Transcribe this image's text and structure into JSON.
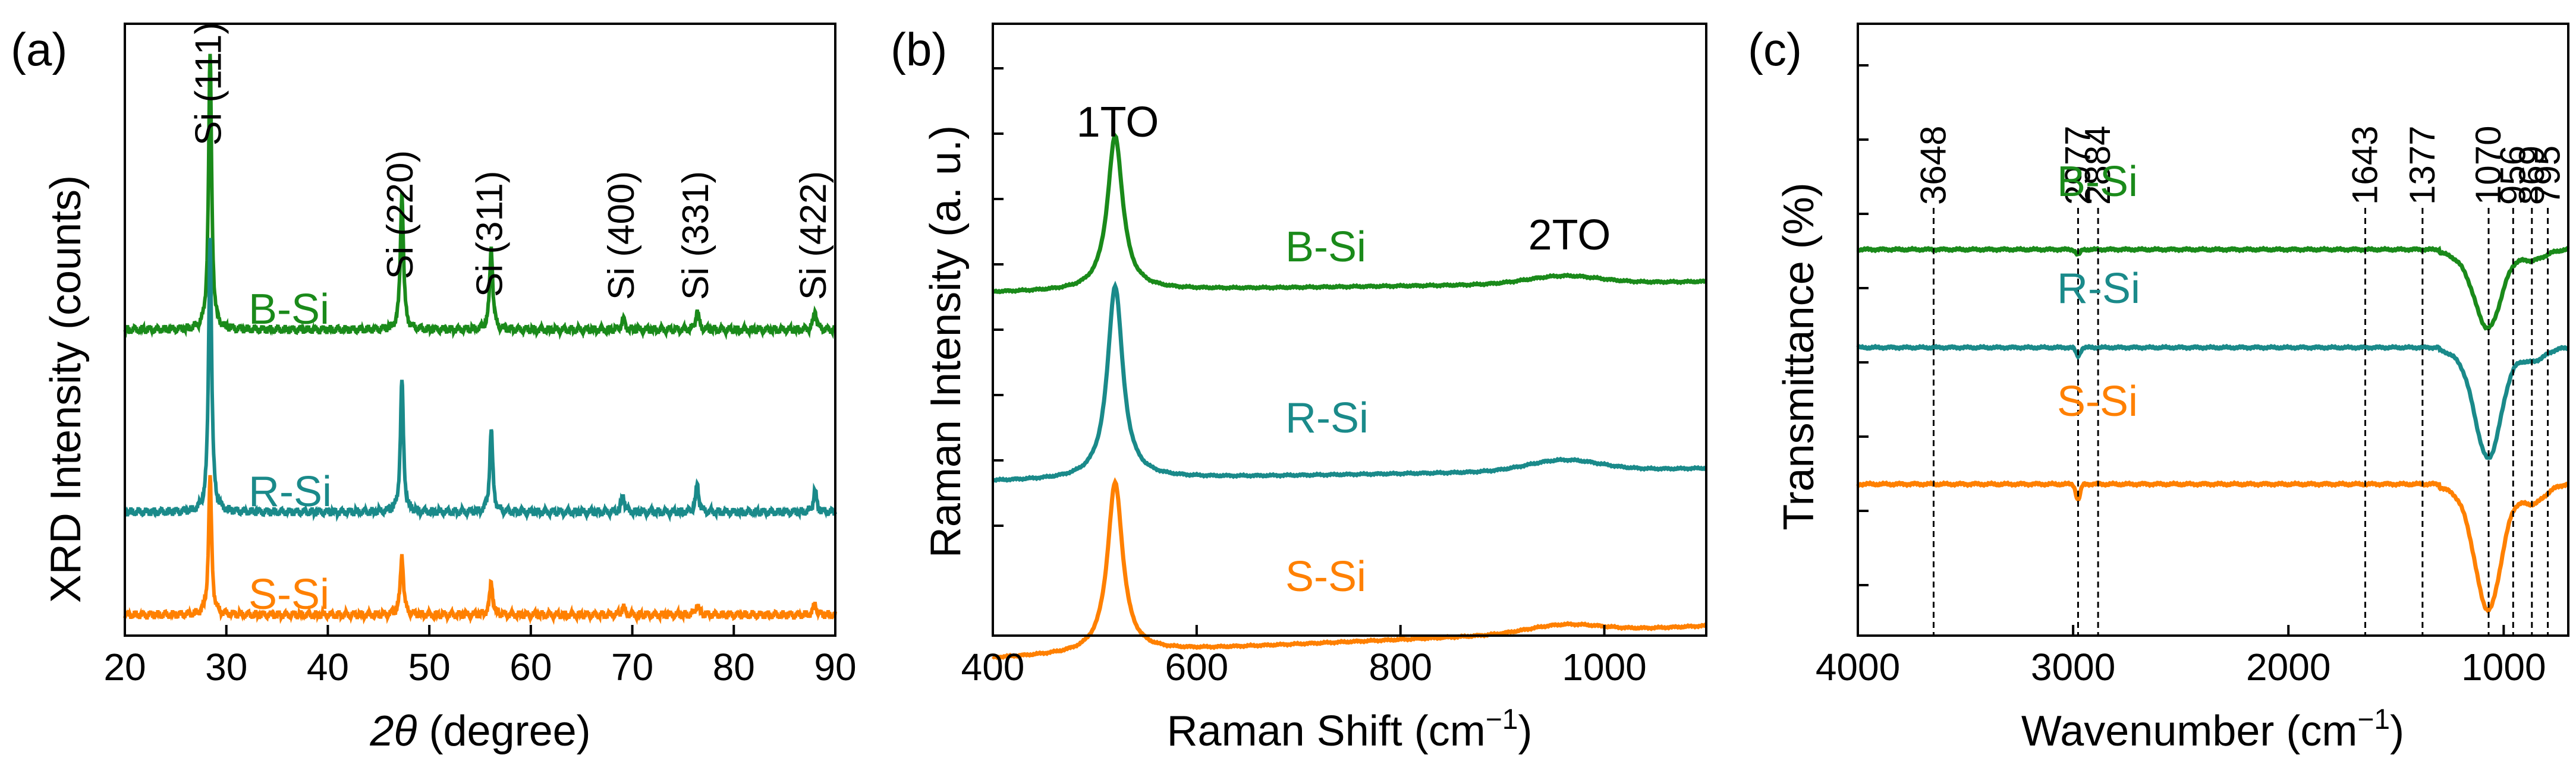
{
  "colors": {
    "b_si": "#1a8a1a",
    "r_si": "#1a8a8a",
    "s_si": "#ff8000",
    "axis": "#000000",
    "ref_line": "#000000"
  },
  "chart_data": [
    {
      "panel_label": "(a)",
      "type": "line",
      "xlabel_symbol": "2θ",
      "xlabel_unit": "(degree)",
      "ylabel": "XRD Intensity (counts)",
      "xlim": [
        20,
        90
      ],
      "xticks": [
        20,
        30,
        40,
        50,
        60,
        70,
        80,
        90
      ],
      "yticks": false,
      "peak_labels": [
        {
          "text": "Si (111)",
          "x": 28.4
        },
        {
          "text": "Si (220)",
          "x": 47.3
        },
        {
          "text": "Si (311)",
          "x": 56.1
        },
        {
          "text": "Si (400)",
          "x": 69.1
        },
        {
          "text": "Si (331)",
          "x": 76.4
        },
        {
          "text": "Si (422)",
          "x": 88.0
        }
      ],
      "series": [
        {
          "name": "B-Si",
          "baseline": 0.0,
          "peaks": [
            [
              28.4,
              100
            ],
            [
              47.3,
              50
            ],
            [
              56.1,
              30
            ],
            [
              69.1,
              4
            ],
            [
              76.4,
              7
            ],
            [
              88.0,
              7
            ]
          ]
        },
        {
          "name": "R-Si",
          "baseline": 0.0,
          "peaks": [
            [
              28.4,
              100
            ],
            [
              47.3,
              48
            ],
            [
              56.1,
              30
            ],
            [
              69.1,
              6
            ],
            [
              76.4,
              10
            ],
            [
              88.0,
              8
            ]
          ]
        },
        {
          "name": "S-Si",
          "baseline": 0.0,
          "peaks": [
            [
              28.4,
              50
            ],
            [
              47.3,
              22
            ],
            [
              56.1,
              12
            ],
            [
              69.1,
              3
            ],
            [
              76.4,
              4
            ],
            [
              88.0,
              4
            ]
          ]
        }
      ]
    },
    {
      "panel_label": "(b)",
      "type": "line",
      "xlabel": "Raman Shift (cm",
      "xlabel_sup": "−1",
      "xlabel_close": ")",
      "ylabel": "Raman Intensity (a. u.)",
      "xlim": [
        400,
        1100
      ],
      "xticks": [
        400,
        600,
        800,
        1000
      ],
      "band_labels": [
        {
          "text": "1TO",
          "x": 520
        },
        {
          "text": "2TO",
          "x": 960
        }
      ],
      "series": [
        {
          "name": "B-Si",
          "peaks": [
            [
              520,
              100
            ],
            [
              960,
              5
            ]
          ]
        },
        {
          "name": "R-Si",
          "peaks": [
            [
              520,
              125
            ],
            [
              960,
              7
            ]
          ]
        },
        {
          "name": "S-Si",
          "peaks": [
            [
              520,
              110
            ],
            [
              960,
              5
            ]
          ]
        }
      ]
    },
    {
      "panel_label": "(c)",
      "type": "line",
      "xlabel": "Wavenumber (cm",
      "xlabel_sup": "−1",
      "xlabel_close": ")",
      "ylabel": "Transmittance (%)",
      "xlim": [
        4000,
        700
      ],
      "xticks": [
        4000,
        3000,
        2000,
        1000
      ],
      "reference_lines": [
        3648,
        2977,
        2884,
        1643,
        1377,
        1070,
        956,
        869,
        795
      ],
      "series": [
        {
          "name": "B-Si",
          "dips": [
            [
              2977,
              3
            ],
            [
              1070,
              40
            ],
            [
              869,
              6
            ]
          ]
        },
        {
          "name": "R-Si",
          "dips": [
            [
              2977,
              5
            ],
            [
              1070,
              60
            ],
            [
              869,
              8
            ]
          ]
        },
        {
          "name": "S-Si",
          "dips": [
            [
              2977,
              8
            ],
            [
              1070,
              60
            ],
            [
              869,
              10
            ]
          ]
        }
      ]
    }
  ]
}
